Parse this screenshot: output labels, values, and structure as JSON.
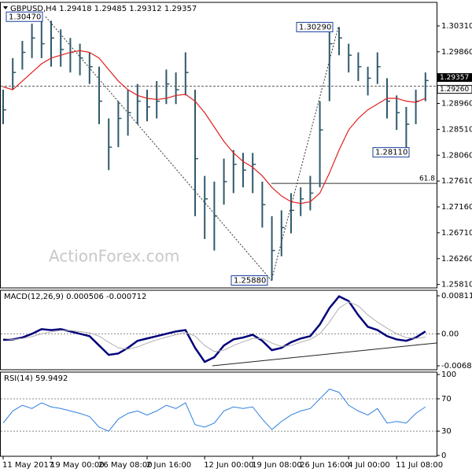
{
  "chart_data": [
    {
      "type": "ohlc",
      "title": "GBPUSD,H4  1.29418 1.29485 1.29312 1.29357",
      "watermark": "ActionForex.com",
      "color": "#2e5a6a",
      "high": [
        1.292,
        1.2975,
        1.3005,
        1.3035,
        1.3047,
        1.304,
        1.3025,
        1.301,
        1.3,
        1.2985,
        1.296,
        1.287,
        1.29,
        1.292,
        1.293,
        1.292,
        1.2935,
        1.2955,
        1.295,
        1.2985,
        1.292,
        1.277,
        1.276,
        1.28,
        1.2815,
        1.281,
        1.281,
        1.276,
        1.27,
        1.271,
        1.274,
        1.275,
        1.277,
        1.29,
        1.302,
        1.3029,
        1.3,
        1.2985,
        1.296,
        1.2985,
        1.294,
        1.291,
        1.289,
        1.292,
        1.295
      ],
      "low": [
        1.286,
        1.292,
        1.2955,
        1.2975,
        1.2975,
        1.296,
        1.296,
        1.295,
        1.2945,
        1.293,
        1.286,
        1.278,
        1.282,
        1.284,
        1.286,
        1.2865,
        1.287,
        1.2895,
        1.2895,
        1.291,
        1.27,
        1.266,
        1.264,
        1.272,
        1.274,
        1.275,
        1.274,
        1.268,
        1.2588,
        1.263,
        1.267,
        1.27,
        1.271,
        1.275,
        1.29,
        1.298,
        1.295,
        1.2935,
        1.291,
        1.293,
        1.287,
        1.285,
        1.2811,
        1.286,
        1.29
      ],
      "close": [
        1.2885,
        1.295,
        1.2985,
        1.301,
        1.3,
        1.301,
        1.299,
        1.2985,
        1.2975,
        1.296,
        1.29,
        1.282,
        1.287,
        1.288,
        1.29,
        1.289,
        1.29,
        1.293,
        1.292,
        1.295,
        1.28,
        1.273,
        1.27,
        1.276,
        1.279,
        1.278,
        1.279,
        1.272,
        1.264,
        1.268,
        1.271,
        1.273,
        1.274,
        1.285,
        1.3,
        1.301,
        1.298,
        1.296,
        1.294,
        1.296,
        1.29,
        1.288,
        1.286,
        1.29,
        1.2936
      ],
      "ma": {
        "color": "#e02020",
        "values": [
          1.2925,
          1.292,
          1.2935,
          1.295,
          1.2965,
          1.2975,
          1.298,
          1.2985,
          1.2988,
          1.2985,
          1.2975,
          1.2955,
          1.2935,
          1.292,
          1.291,
          1.2905,
          1.2903,
          1.2905,
          1.291,
          1.2912,
          1.29,
          1.288,
          1.2855,
          1.283,
          1.281,
          1.2795,
          1.2785,
          1.277,
          1.275,
          1.2735,
          1.2725,
          1.2722,
          1.2725,
          1.274,
          1.2775,
          1.2815,
          1.285,
          1.287,
          1.2885,
          1.2895,
          1.2905,
          1.2905,
          1.29,
          1.2898,
          1.2905
        ]
      },
      "ylim": [
        1.2575,
        1.3072
      ],
      "yticks": [
        {
          "value": 1.3031,
          "label": "1.30310"
        },
        {
          "value": 1.2986,
          "label": "1.29860"
        },
        {
          "value": 1.2941,
          "label": "1.29410"
        },
        {
          "value": 1.2896,
          "label": "1.28960"
        },
        {
          "value": 1.2851,
          "label": "1.28510"
        },
        {
          "value": 1.2806,
          "label": "1.28060"
        },
        {
          "value": 1.2761,
          "label": "1.27610"
        },
        {
          "value": 1.2716,
          "label": "1.27160"
        },
        {
          "value": 1.2671,
          "label": "1.26710"
        },
        {
          "value": 1.2626,
          "label": "1.26260"
        },
        {
          "value": 1.2581,
          "label": "1.25810"
        }
      ],
      "annotations": [
        {
          "value": 1.3047,
          "label": "1.30470"
        },
        {
          "value": 1.3029,
          "label": "1.30290"
        },
        {
          "value": 1.2811,
          "label": "1.28110"
        },
        {
          "value": 1.2588,
          "label": "1.25880"
        }
      ],
      "fib": {
        "value": 1.2757,
        "label": "61.8"
      },
      "price_lines": [
        {
          "value": 1.2926,
          "label": "1.29260"
        },
        {
          "value": 1.29357,
          "label": "1.29357"
        }
      ]
    },
    {
      "type": "macd",
      "title": "MACD(12,26,9) 0.000506 -0.000712",
      "series": [
        {
          "color": "#00007a",
          "values": [
            -0.0013,
            -0.0012,
            -0.0008,
            0.0,
            0.001,
            0.0008,
            0.001,
            0.0005,
            0.0,
            -0.0005,
            -0.0025,
            -0.0045,
            -0.0042,
            -0.003,
            -0.0015,
            -0.001,
            -0.0005,
            0.0,
            0.0005,
            0.0008,
            -0.003,
            -0.006,
            -0.005,
            -0.0025,
            -0.0012,
            -0.0008,
            -0.0002,
            -0.0015,
            -0.0035,
            -0.003,
            -0.0018,
            -0.001,
            -0.0005,
            0.002,
            0.0055,
            0.008,
            0.007,
            0.004,
            0.0015,
            0.0008,
            -0.0005,
            -0.0012,
            -0.0015,
            -0.0008,
            0.0005
          ]
        },
        {
          "color": "#b0b0b0",
          "values": [
            -0.001,
            -0.0012,
            -0.001,
            -0.0006,
            0.0,
            0.0004,
            0.0007,
            0.0007,
            0.0005,
            0.0002,
            -0.0005,
            -0.0018,
            -0.003,
            -0.0033,
            -0.0028,
            -0.002,
            -0.0013,
            -0.0007,
            -0.0002,
            0.0003,
            -0.0005,
            -0.0025,
            -0.0038,
            -0.0035,
            -0.0025,
            -0.0017,
            -0.001,
            -0.001,
            -0.002,
            -0.0027,
            -0.0025,
            -0.0018,
            -0.0012,
            0.0,
            0.0025,
            0.0055,
            0.0068,
            0.006,
            0.004,
            0.0025,
            0.0012,
            0.0,
            -0.0008,
            -0.001,
            -0.0007
          ]
        }
      ],
      "ylim": [
        -0.00768,
        0.0093
      ],
      "yticks": [
        0.008118,
        {
          "value": 0,
          "label": "0.00"
        },
        -0.006844
      ]
    },
    {
      "type": "rsi",
      "title": "RSI(14) 59.9492",
      "color": "#2f7fe0",
      "values": [
        40,
        55,
        62,
        58,
        65,
        60,
        58,
        55,
        52,
        48,
        35,
        30,
        45,
        52,
        55,
        50,
        55,
        62,
        58,
        65,
        38,
        35,
        40,
        55,
        60,
        58,
        60,
        45,
        32,
        42,
        50,
        55,
        58,
        70,
        82,
        78,
        62,
        55,
        50,
        58,
        40,
        42,
        40,
        52,
        60
      ],
      "ylim": [
        -1,
        103
      ],
      "yticks": [
        100,
        70,
        30,
        0
      ],
      "levels": [
        70,
        30
      ],
      "categories": [
        "11 May 2017",
        null,
        null,
        null,
        null,
        "19 May 00:00",
        null,
        null,
        null,
        null,
        "26 May 08:00",
        null,
        null,
        null,
        null,
        "2 Jun 16:00",
        null,
        null,
        null,
        null,
        null,
        "12 Jun 00:00",
        null,
        null,
        null,
        null,
        "19 Jun 08:00",
        null,
        null,
        null,
        null,
        "26 Jun 16:00",
        null,
        null,
        null,
        null,
        "4 Jul 00:00",
        null,
        null,
        null,
        null,
        "11 Jul 08:00",
        null,
        null,
        null
      ]
    }
  ]
}
